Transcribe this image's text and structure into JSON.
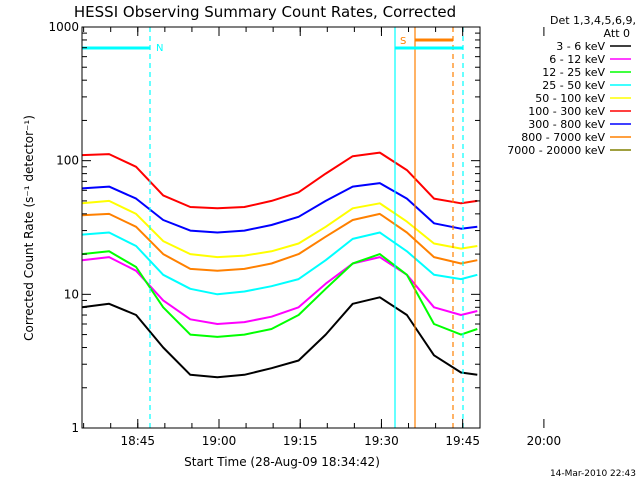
{
  "chart_data": {
    "type": "line",
    "title": "HESSI Observing Summary Count Rates, Corrected",
    "xlabel": "Start Time (28-Aug-09 18:34:42)",
    "ylabel": "Corrected Count Rate (s⁻¹ detector⁻¹)",
    "y_scale": "log",
    "ylim": [
      1,
      1000
    ],
    "y_ticks": [
      {
        "value": 1,
        "label": "1"
      },
      {
        "value": 10,
        "label": "10"
      },
      {
        "value": 100,
        "label": "100"
      },
      {
        "value": 1000,
        "label": "1000"
      }
    ],
    "x_unit": "minutes since 18:34:42",
    "xlim": [
      0,
      73.5
    ],
    "x_ticks": [
      {
        "value": 10.3,
        "label": "18:45"
      },
      {
        "value": 25.3,
        "label": "19:00"
      },
      {
        "value": 40.3,
        "label": "19:15"
      },
      {
        "value": 55.3,
        "label": "19:30"
      },
      {
        "value": 70.3,
        "label": "19:45"
      },
      {
        "value": 85.3,
        "label": "20:00"
      }
    ],
    "legend_header": [
      "Det 1,3,4,5,6,9,",
      "Att 0"
    ],
    "legend_position": "right",
    "series": [
      {
        "name": "3 - 6 keV",
        "color": "#000000",
        "x": [
          0,
          5,
          10,
          15,
          20,
          25,
          30,
          35,
          40,
          45,
          50,
          55,
          60,
          65,
          70,
          73
        ],
        "values": [
          8,
          8.5,
          7,
          4,
          2.5,
          2.4,
          2.5,
          2.8,
          3.2,
          5,
          8.5,
          9.5,
          7,
          3.5,
          2.6,
          2.5
        ]
      },
      {
        "name": "6 - 12 keV",
        "color": "#ff00ff",
        "x": [
          0,
          5,
          10,
          15,
          20,
          25,
          30,
          35,
          40,
          45,
          50,
          55,
          60,
          65,
          70,
          73
        ],
        "values": [
          18,
          19,
          15,
          9,
          6.5,
          6,
          6.2,
          6.8,
          8,
          12,
          17,
          19,
          14,
          8,
          7,
          7.5
        ]
      },
      {
        "name": "12 - 25 keV",
        "color": "#00ff00",
        "x": [
          0,
          5,
          10,
          15,
          20,
          25,
          30,
          35,
          40,
          45,
          50,
          55,
          60,
          65,
          70,
          73
        ],
        "values": [
          20,
          21,
          16,
          8,
          5,
          4.8,
          5,
          5.5,
          7,
          11,
          17,
          20,
          14,
          6,
          5,
          5.5
        ]
      },
      {
        "name": "25 - 50 keV",
        "color": "#00ffff",
        "x": [
          0,
          5,
          10,
          15,
          20,
          25,
          30,
          35,
          40,
          45,
          50,
          55,
          60,
          65,
          70,
          73
        ],
        "values": [
          28,
          29,
          23,
          14,
          11,
          10,
          10.5,
          11.5,
          13,
          18,
          26,
          29,
          21,
          14,
          13,
          14
        ]
      },
      {
        "name": "50 - 100 keV",
        "color": "#ffff00",
        "x": [
          0,
          5,
          10,
          15,
          20,
          25,
          30,
          35,
          40,
          45,
          50,
          55,
          60,
          65,
          70,
          73
        ],
        "values": [
          48,
          50,
          40,
          25,
          20,
          19,
          19.5,
          21,
          24,
          32,
          44,
          48,
          35,
          24,
          22,
          23
        ]
      },
      {
        "name": "100 - 300 keV",
        "color": "#ff0000",
        "x": [
          0,
          5,
          10,
          15,
          20,
          25,
          30,
          35,
          40,
          45,
          50,
          55,
          60,
          65,
          70,
          73
        ],
        "values": [
          110,
          112,
          90,
          55,
          45,
          44,
          45,
          50,
          58,
          80,
          108,
          115,
          85,
          52,
          48,
          50
        ]
      },
      {
        "name": "300 - 800 keV",
        "color": "#0000ff",
        "x": [
          0,
          5,
          10,
          15,
          20,
          25,
          30,
          35,
          40,
          45,
          50,
          55,
          60,
          65,
          70,
          73
        ],
        "values": [
          62,
          64,
          52,
          36,
          30,
          29,
          30,
          33,
          38,
          50,
          64,
          68,
          52,
          34,
          31,
          32
        ]
      },
      {
        "name": "800 - 7000 keV",
        "color": "#ff8000",
        "x": [
          0,
          5,
          10,
          15,
          20,
          25,
          30,
          35,
          40,
          45,
          50,
          55,
          60,
          65,
          70,
          73
        ],
        "values": [
          39,
          40,
          32,
          20,
          15.5,
          15,
          15.5,
          17,
          20,
          27,
          36,
          40,
          29,
          19,
          17,
          18
        ]
      },
      {
        "name": "7000 - 20000 keV",
        "color": "#808000",
        "x": [],
        "values": []
      }
    ],
    "markers": [
      {
        "label": "N",
        "color": "#00ffff"
      },
      {
        "label": "S",
        "color": "#ff8000"
      }
    ]
  },
  "footer": {
    "date_stamp": "14-Mar-2010 22:43"
  }
}
